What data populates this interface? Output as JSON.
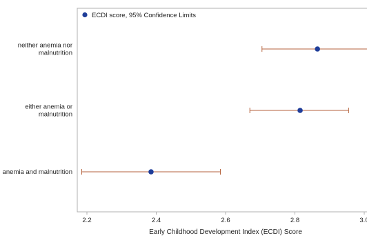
{
  "chart_data": {
    "type": "scatter",
    "orientation": "horizontal",
    "xlabel": "Early Childhood Development Index (ECDI) Score",
    "ylabel": "",
    "xlim": [
      2.18,
      3.02
    ],
    "x_ticks": [
      "2.2",
      "2.4",
      "2.6",
      "2.8",
      "3.0"
    ],
    "categories": [
      [
        "neither anemia nor",
        "malnutrition"
      ],
      [
        "either anemia or",
        "malnutrition"
      ],
      [
        "anemia and malnutrition"
      ]
    ],
    "series": [
      {
        "name": "ECDI score, 95% Confidence Limits",
        "values": [
          2.865,
          2.815,
          2.385
        ],
        "lower": [
          2.705,
          2.67,
          2.185
        ],
        "upper": [
          3.02,
          2.955,
          2.585
        ]
      }
    ],
    "grid": false,
    "legend_position": "top-left",
    "colors": {
      "point": "#1f3d99",
      "error_bar": "#b5623c",
      "frame": "#b0b0b0"
    }
  }
}
